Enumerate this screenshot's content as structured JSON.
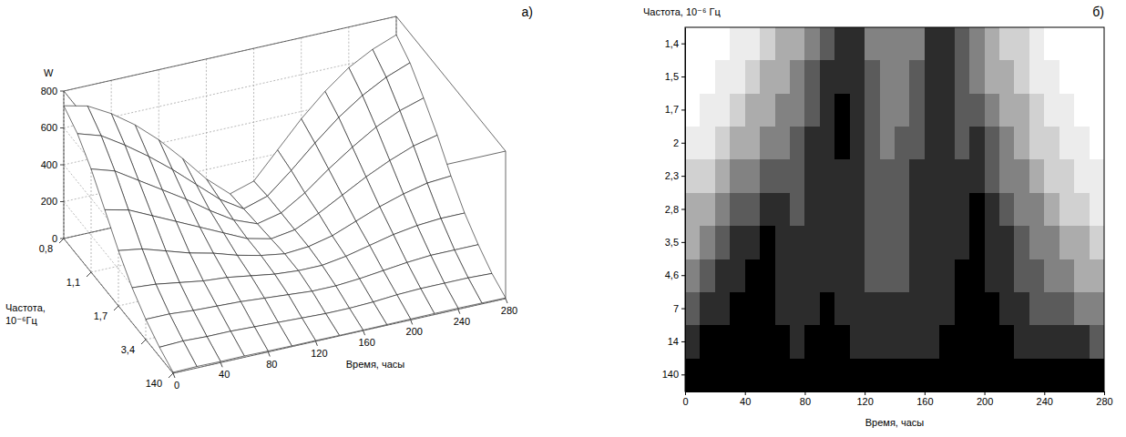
{
  "chart_data": [
    {
      "type": "surface",
      "panel_label": "а)",
      "x_label": "Время, часы",
      "y_label": "Частота, 10⁻⁶Гц",
      "z_label": "W",
      "grid": true,
      "x": [
        0,
        20,
        40,
        60,
        80,
        100,
        120,
        140,
        160,
        180,
        200,
        220,
        240,
        260,
        280
      ],
      "y": [
        0.8,
        0.93,
        1.1,
        1.33,
        1.7,
        2.26,
        3.4,
        6.7,
        140
      ],
      "z": [
        [
          720,
          690,
          620,
          530,
          420,
          290,
          150,
          40,
          80,
          220,
          360,
          480,
          580,
          650,
          700
        ],
        [
          660,
          620,
          540,
          450,
          350,
          240,
          130,
          50,
          90,
          200,
          320,
          430,
          520,
          590,
          640
        ],
        [
          560,
          520,
          440,
          360,
          280,
          190,
          110,
          60,
          90,
          170,
          270,
          360,
          440,
          500,
          540
        ],
        [
          430,
          400,
          340,
          280,
          220,
          160,
          100,
          70,
          90,
          150,
          220,
          290,
          350,
          400,
          430
        ],
        [
          300,
          280,
          240,
          200,
          170,
          130,
          100,
          80,
          90,
          120,
          170,
          220,
          260,
          290,
          300
        ],
        [
          190,
          180,
          160,
          140,
          130,
          110,
          90,
          80,
          80,
          100,
          130,
          160,
          180,
          190,
          190
        ],
        [
          110,
          110,
          100,
          95,
          90,
          80,
          70,
          60,
          60,
          70,
          85,
          100,
          110,
          110,
          110
        ],
        [
          50,
          55,
          50,
          50,
          45,
          40,
          35,
          30,
          30,
          35,
          45,
          50,
          50,
          50,
          45
        ],
        [
          5,
          8,
          6,
          7,
          5,
          4,
          4,
          3,
          3,
          4,
          5,
          6,
          6,
          5,
          4
        ]
      ],
      "xlim": [
        0,
        280
      ],
      "xticks": [
        0,
        40,
        80,
        120,
        160,
        200,
        240,
        280
      ],
      "yticks": [
        {
          "value": 0.8,
          "label": "0,8"
        },
        {
          "value": 1.1,
          "label": "1,1"
        },
        {
          "value": 1.7,
          "label": "1,7"
        },
        {
          "value": 3.4,
          "label": "3,4"
        },
        140
      ],
      "zlim": [
        0,
        800
      ],
      "zticks": [
        0,
        200,
        400,
        600,
        800
      ]
    },
    {
      "type": "heatmap",
      "panel_label": "б)",
      "x_label": "Время, часы",
      "y_label": "Частота, 10⁻⁶ Гц",
      "x_edges": [
        0,
        10,
        20,
        30,
        40,
        50,
        60,
        70,
        80,
        90,
        100,
        110,
        120,
        130,
        140,
        150,
        160,
        170,
        180,
        190,
        200,
        210,
        220,
        230,
        240,
        250,
        260,
        270,
        280
      ],
      "y": [
        1.4,
        1.5,
        1.7,
        2,
        2.3,
        2.8,
        3.5,
        4.6,
        7,
        14,
        140
      ],
      "cells": [
        [
          760,
          740,
          700,
          660,
          600,
          540,
          480,
          420,
          340,
          220,
          120,
          140,
          300,
          380,
          360,
          300,
          140,
          120,
          260,
          360,
          440,
          520,
          580,
          640,
          700,
          740,
          760,
          780
        ],
        [
          740,
          700,
          660,
          600,
          540,
          480,
          420,
          360,
          280,
          180,
          100,
          140,
          280,
          340,
          330,
          260,
          120,
          120,
          240,
          320,
          400,
          480,
          540,
          600,
          660,
          720,
          740,
          760
        ],
        [
          700,
          660,
          600,
          540,
          480,
          420,
          360,
          300,
          220,
          150,
          90,
          140,
          260,
          320,
          300,
          220,
          110,
          130,
          220,
          280,
          340,
          420,
          480,
          560,
          620,
          680,
          720,
          740
        ],
        [
          640,
          600,
          540,
          460,
          400,
          340,
          300,
          240,
          180,
          140,
          90,
          150,
          240,
          300,
          280,
          200,
          120,
          150,
          200,
          160,
          260,
          360,
          420,
          500,
          580,
          640,
          680,
          700
        ],
        [
          560,
          520,
          460,
          380,
          320,
          260,
          220,
          200,
          160,
          130,
          100,
          160,
          230,
          280,
          260,
          180,
          130,
          160,
          180,
          120,
          200,
          300,
          360,
          440,
          520,
          580,
          620,
          660
        ],
        [
          480,
          420,
          360,
          280,
          200,
          140,
          180,
          200,
          150,
          120,
          110,
          170,
          220,
          260,
          240,
          170,
          140,
          170,
          140,
          90,
          160,
          240,
          300,
          380,
          460,
          520,
          560,
          600
        ],
        [
          400,
          340,
          260,
          180,
          120,
          80,
          150,
          190,
          140,
          110,
          120,
          170,
          210,
          240,
          220,
          160,
          150,
          160,
          110,
          70,
          120,
          190,
          240,
          300,
          380,
          440,
          480,
          520
        ],
        [
          320,
          260,
          180,
          110,
          70,
          60,
          120,
          170,
          120,
          100,
          120,
          160,
          200,
          220,
          200,
          150,
          150,
          140,
          90,
          60,
          100,
          160,
          200,
          240,
          300,
          360,
          400,
          440
        ],
        [
          240,
          180,
          110,
          70,
          50,
          60,
          100,
          140,
          100,
          80,
          110,
          150,
          180,
          190,
          170,
          130,
          140,
          120,
          70,
          50,
          80,
          130,
          160,
          200,
          230,
          280,
          320,
          360
        ],
        [
          120,
          90,
          60,
          40,
          40,
          60,
          80,
          100,
          70,
          60,
          90,
          120,
          140,
          140,
          130,
          100,
          110,
          90,
          50,
          40,
          60,
          90,
          110,
          130,
          150,
          170,
          190,
          200
        ],
        [
          40,
          30,
          20,
          20,
          30,
          40,
          50,
          50,
          40,
          40,
          60,
          70,
          80,
          80,
          70,
          60,
          60,
          50,
          30,
          20,
          30,
          40,
          60,
          60,
          70,
          80,
          80,
          60
        ]
      ],
      "color_range": [
        0,
        800
      ],
      "xlim": [
        0,
        280
      ],
      "xticks": [
        0,
        40,
        80,
        120,
        160,
        200,
        240,
        280
      ],
      "yticks": [
        {
          "value": 1.4,
          "label": "1,4"
        },
        {
          "value": 1.5,
          "label": "1,5"
        },
        {
          "value": 1.7,
          "label": "1,7"
        },
        2,
        {
          "value": 2.3,
          "label": "2,3"
        },
        {
          "value": 2.8,
          "label": "2,8"
        },
        {
          "value": 3.5,
          "label": "3,5"
        },
        {
          "value": 4.6,
          "label": "4,6"
        },
        7,
        14,
        140
      ]
    }
  ]
}
